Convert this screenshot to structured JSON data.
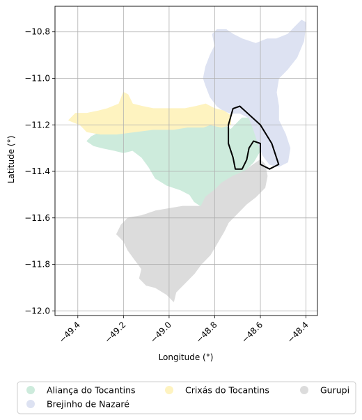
{
  "chart_data": {
    "type": "choropleth-map",
    "xlabel": "Longitude (°)",
    "ylabel": "Latitude (°)",
    "xlim": [
      -49.5,
      -48.35
    ],
    "ylim": [
      -12.02,
      -10.69
    ],
    "x_ticks": [
      -49.4,
      -49.2,
      -49.0,
      -48.8,
      -48.6,
      -48.4
    ],
    "x_tick_labels": [
      "−49.4",
      "−49.2",
      "−49.0",
      "−48.8",
      "−48.6",
      "−48.4"
    ],
    "y_ticks": [
      -10.8,
      -11.0,
      -11.2,
      -11.4,
      -11.6,
      -11.8,
      -12.0
    ],
    "y_tick_labels": [
      "−10.8",
      "−11.0",
      "−11.2",
      "−11.4",
      "−11.6",
      "−11.8",
      "−12.0"
    ],
    "grid": true,
    "legend_position": "bottom",
    "regions": [
      {
        "name": "Aliança do Tocantins",
        "color": "#cdebdc",
        "polygon": [
          [
            -49.3,
            -11.23
          ],
          [
            -49.23,
            -11.24
          ],
          [
            -49.15,
            -11.23
          ],
          [
            -49.07,
            -11.22
          ],
          [
            -48.98,
            -11.22
          ],
          [
            -48.92,
            -11.21
          ],
          [
            -48.85,
            -11.21
          ],
          [
            -48.82,
            -11.19
          ],
          [
            -48.76,
            -11.2
          ],
          [
            -48.73,
            -11.22
          ],
          [
            -48.68,
            -11.17
          ],
          [
            -48.64,
            -11.17
          ],
          [
            -48.6,
            -11.19
          ],
          [
            -48.6,
            -11.31
          ],
          [
            -48.63,
            -11.36
          ],
          [
            -48.67,
            -11.4
          ],
          [
            -48.72,
            -11.42
          ],
          [
            -48.77,
            -11.45
          ],
          [
            -48.8,
            -11.48
          ],
          [
            -48.84,
            -11.51
          ],
          [
            -48.86,
            -11.55
          ],
          [
            -48.89,
            -11.53
          ],
          [
            -48.91,
            -11.5
          ],
          [
            -48.95,
            -11.48
          ],
          [
            -49.01,
            -11.46
          ],
          [
            -49.06,
            -11.43
          ],
          [
            -49.09,
            -11.38
          ],
          [
            -49.12,
            -11.34
          ],
          [
            -49.16,
            -11.31
          ],
          [
            -49.2,
            -11.32
          ],
          [
            -49.24,
            -11.31
          ],
          [
            -49.29,
            -11.3
          ],
          [
            -49.33,
            -11.29
          ],
          [
            -49.36,
            -11.27
          ],
          [
            -49.34,
            -11.25
          ]
        ]
      },
      {
        "name": "Brejinho de Nazaré",
        "color": "#dde2f2",
        "polygon": [
          [
            -48.85,
            -11.0
          ],
          [
            -48.84,
            -10.95
          ],
          [
            -48.82,
            -10.9
          ],
          [
            -48.8,
            -10.86
          ],
          [
            -48.81,
            -10.81
          ],
          [
            -48.79,
            -10.79
          ],
          [
            -48.75,
            -10.79
          ],
          [
            -48.72,
            -10.81
          ],
          [
            -48.68,
            -10.83
          ],
          [
            -48.62,
            -10.85
          ],
          [
            -48.57,
            -10.83
          ],
          [
            -48.53,
            -10.83
          ],
          [
            -48.48,
            -10.81
          ],
          [
            -48.45,
            -10.78
          ],
          [
            -48.42,
            -10.75
          ],
          [
            -48.4,
            -10.76
          ],
          [
            -48.41,
            -10.84
          ],
          [
            -48.44,
            -10.91
          ],
          [
            -48.48,
            -10.96
          ],
          [
            -48.52,
            -11.0
          ],
          [
            -48.53,
            -11.06
          ],
          [
            -48.52,
            -11.12
          ],
          [
            -48.52,
            -11.18
          ],
          [
            -48.49,
            -11.24
          ],
          [
            -48.47,
            -11.3
          ],
          [
            -48.48,
            -11.36
          ],
          [
            -48.52,
            -11.38
          ],
          [
            -48.56,
            -11.37
          ],
          [
            -48.59,
            -11.33
          ],
          [
            -48.61,
            -11.28
          ],
          [
            -48.63,
            -11.22
          ],
          [
            -48.65,
            -11.17
          ],
          [
            -48.69,
            -11.15
          ],
          [
            -48.73,
            -11.15
          ],
          [
            -48.76,
            -11.14
          ],
          [
            -48.79,
            -11.12
          ],
          [
            -48.82,
            -11.08
          ],
          [
            -48.84,
            -11.03
          ]
        ]
      },
      {
        "name": "Crixás do Tocantins",
        "color": "#fef3c0",
        "polygon": [
          [
            -49.44,
            -11.18
          ],
          [
            -49.41,
            -11.15
          ],
          [
            -49.36,
            -11.15
          ],
          [
            -49.31,
            -11.14
          ],
          [
            -49.27,
            -11.13
          ],
          [
            -49.22,
            -11.11
          ],
          [
            -49.2,
            -11.06
          ],
          [
            -49.18,
            -11.07
          ],
          [
            -49.16,
            -11.11
          ],
          [
            -49.12,
            -11.12
          ],
          [
            -49.07,
            -11.13
          ],
          [
            -48.99,
            -11.13
          ],
          [
            -48.93,
            -11.13
          ],
          [
            -48.88,
            -11.12
          ],
          [
            -48.84,
            -11.11
          ],
          [
            -48.8,
            -11.13
          ],
          [
            -48.76,
            -11.14
          ],
          [
            -48.73,
            -11.16
          ],
          [
            -48.73,
            -11.2
          ],
          [
            -48.77,
            -11.21
          ],
          [
            -48.82,
            -11.2
          ],
          [
            -48.85,
            -11.21
          ],
          [
            -48.92,
            -11.21
          ],
          [
            -48.98,
            -11.22
          ],
          [
            -49.07,
            -11.22
          ],
          [
            -49.15,
            -11.23
          ],
          [
            -49.23,
            -11.24
          ],
          [
            -49.3,
            -11.24
          ],
          [
            -49.36,
            -11.23
          ],
          [
            -49.39,
            -11.2
          ]
        ]
      },
      {
        "name": "Gurupi",
        "color": "#dcdcdc",
        "polygon": [
          [
            -48.86,
            -11.55
          ],
          [
            -48.84,
            -11.51
          ],
          [
            -48.8,
            -11.48
          ],
          [
            -48.77,
            -11.45
          ],
          [
            -48.72,
            -11.42
          ],
          [
            -48.67,
            -11.4
          ],
          [
            -48.63,
            -11.37
          ],
          [
            -48.6,
            -11.35
          ],
          [
            -48.58,
            -11.37
          ],
          [
            -48.57,
            -11.42
          ],
          [
            -48.58,
            -11.47
          ],
          [
            -48.62,
            -11.51
          ],
          [
            -48.66,
            -11.54
          ],
          [
            -48.7,
            -11.58
          ],
          [
            -48.74,
            -11.62
          ],
          [
            -48.76,
            -11.66
          ],
          [
            -48.79,
            -11.71
          ],
          [
            -48.82,
            -11.76
          ],
          [
            -48.86,
            -11.8
          ],
          [
            -48.89,
            -11.84
          ],
          [
            -48.93,
            -11.88
          ],
          [
            -48.97,
            -11.92
          ],
          [
            -48.98,
            -11.96
          ],
          [
            -49.01,
            -11.93
          ],
          [
            -49.06,
            -11.9
          ],
          [
            -49.1,
            -11.89
          ],
          [
            -49.13,
            -11.86
          ],
          [
            -49.12,
            -11.82
          ],
          [
            -49.15,
            -11.78
          ],
          [
            -49.18,
            -11.74
          ],
          [
            -49.2,
            -11.7
          ],
          [
            -49.23,
            -11.67
          ],
          [
            -49.21,
            -11.63
          ],
          [
            -49.18,
            -11.6
          ],
          [
            -49.12,
            -11.59
          ],
          [
            -49.06,
            -11.57
          ],
          [
            -49.0,
            -11.56
          ],
          [
            -48.94,
            -11.55
          ]
        ]
      },
      {
        "name": "",
        "color": "#000000",
        "outline": true,
        "polygon": [
          [
            -48.69,
            -11.12
          ],
          [
            -48.6,
            -11.2
          ],
          [
            -48.55,
            -11.28
          ],
          [
            -48.52,
            -11.37
          ],
          [
            -48.56,
            -11.39
          ],
          [
            -48.6,
            -11.37
          ],
          [
            -48.6,
            -11.28
          ],
          [
            -48.63,
            -11.27
          ],
          [
            -48.65,
            -11.3
          ],
          [
            -48.66,
            -11.35
          ],
          [
            -48.68,
            -11.39
          ],
          [
            -48.71,
            -11.39
          ],
          [
            -48.72,
            -11.34
          ],
          [
            -48.74,
            -11.28
          ],
          [
            -48.74,
            -11.2
          ],
          [
            -48.72,
            -11.13
          ]
        ]
      }
    ],
    "legend": [
      {
        "label": "Aliança do Tocantins",
        "color": "#cdebdc"
      },
      {
        "label": "Crixás do Tocantins",
        "color": "#fef3c0"
      },
      {
        "label": "Gurupi",
        "color": "#dcdcdc"
      },
      {
        "label": "Brejinho de Nazaré",
        "color": "#dde2f2"
      }
    ]
  }
}
